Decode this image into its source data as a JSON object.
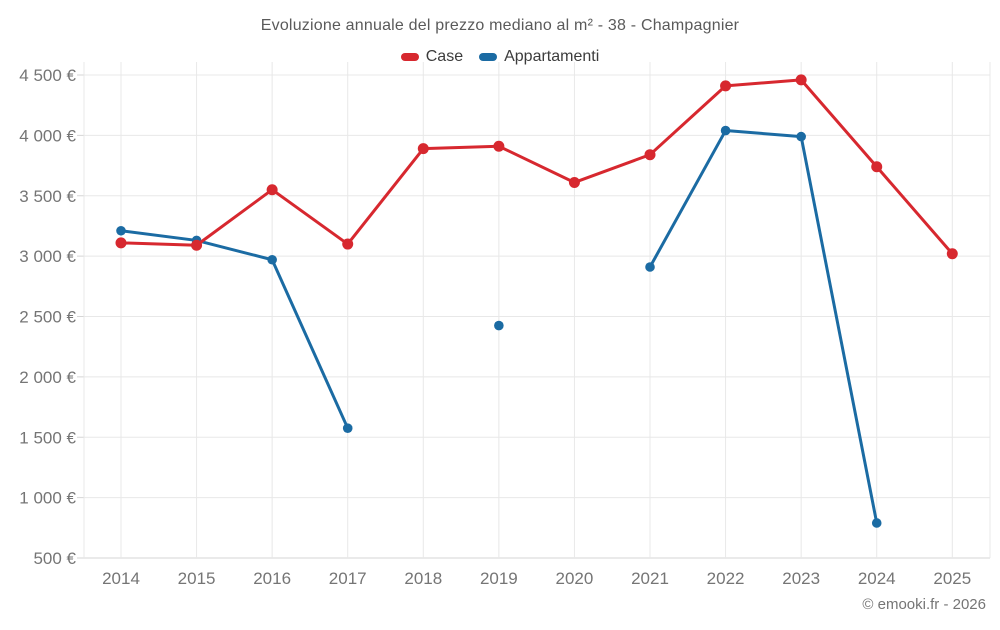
{
  "title": "Evoluzione annuale del prezzo mediano al m² - 38 - Champagnier",
  "copyright": "© emooki.fr - 2026",
  "colors": {
    "background": "#ffffff",
    "grid": "#e8e8e8",
    "axis": "#d5d5d5",
    "tick_text": "#757575",
    "title_text": "#5a5a5a",
    "legend_text": "#3c3c3c",
    "case_red": "#d7282f",
    "appartamenti_blue": "#1b6ba3"
  },
  "chart_data": {
    "type": "line",
    "title": "Evoluzione annuale del prezzo mediano al m² - 38 - Champagnier",
    "xlabel": "",
    "ylabel": "",
    "x": [
      2014,
      2015,
      2016,
      2017,
      2018,
      2019,
      2020,
      2021,
      2022,
      2023,
      2024,
      2025
    ],
    "xtick_labels": [
      "2014",
      "2015",
      "2016",
      "2017",
      "2018",
      "2019",
      "2020",
      "2021",
      "2022",
      "2023",
      "2024",
      "2025"
    ],
    "ylim": [
      500,
      4500
    ],
    "ytick_step": 500,
    "ytick_labels": [
      "500 €",
      "1 000 €",
      "1 500 €",
      "2 000 €",
      "2 500 €",
      "3 000 €",
      "3 500 €",
      "4 000 €",
      "4 500 €"
    ],
    "grid": true,
    "legend_position": "top-center",
    "currency": "€",
    "series": [
      {
        "name": "Case",
        "color": "#d7282f",
        "values": [
          3110,
          3090,
          3550,
          3100,
          3890,
          3910,
          3610,
          3840,
          4410,
          4460,
          3740,
          3020
        ]
      },
      {
        "name": "Appartamenti",
        "color": "#1b6ba3",
        "values": [
          3210,
          3130,
          2970,
          1575,
          null,
          2425,
          null,
          2910,
          4040,
          3990,
          790,
          null
        ]
      }
    ]
  }
}
